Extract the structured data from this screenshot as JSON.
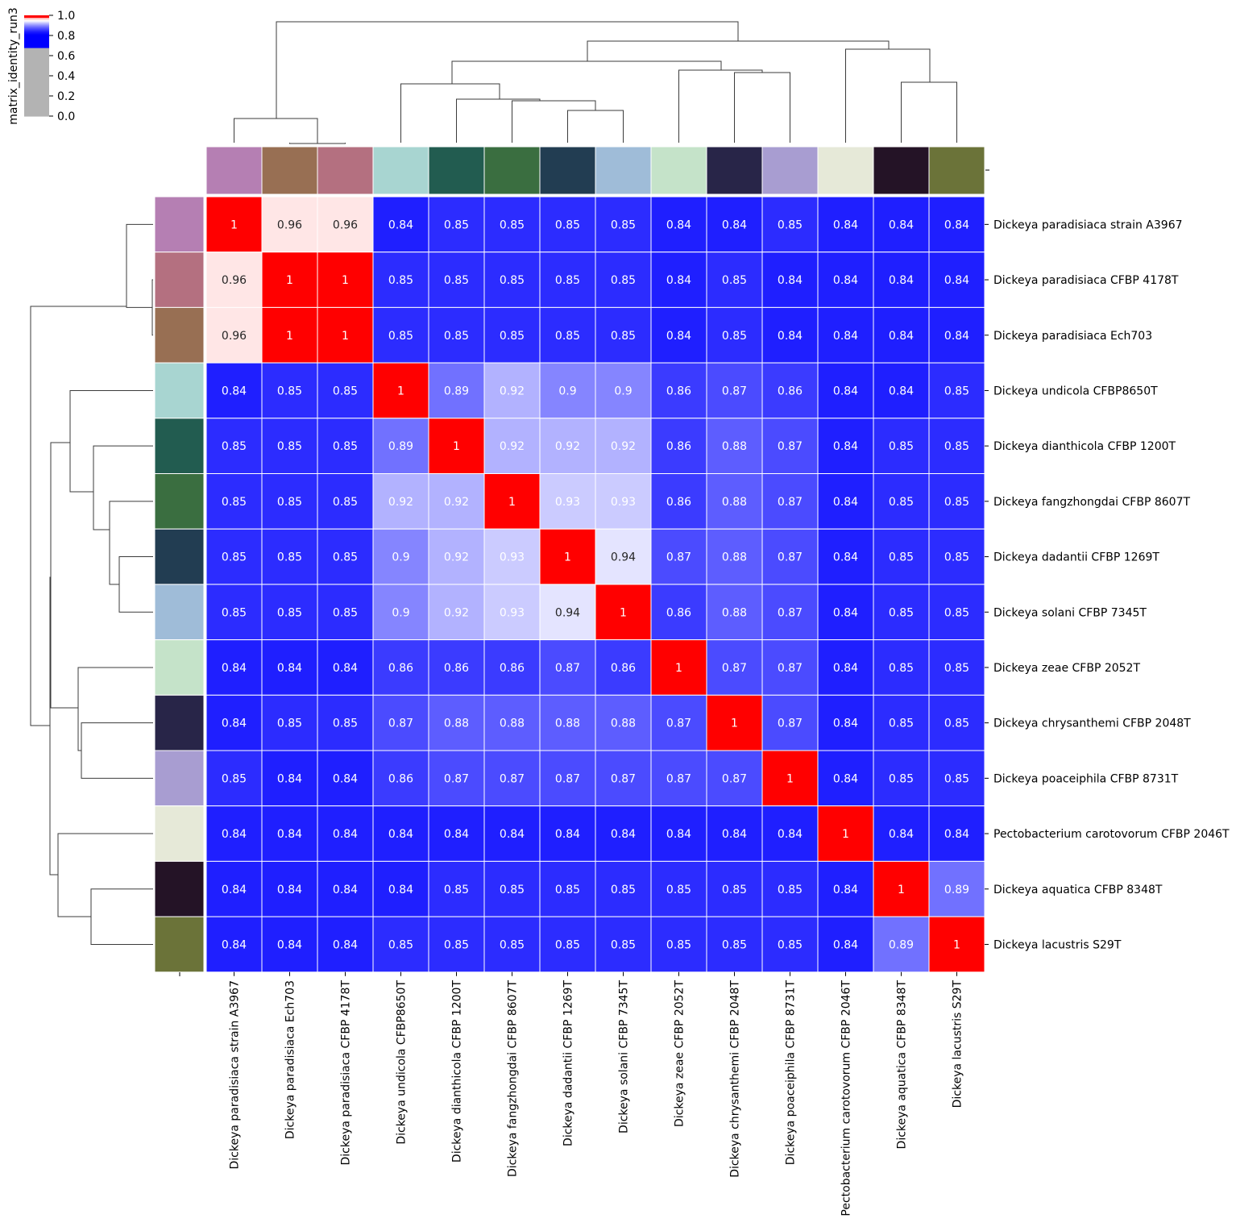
{
  "chart_data": {
    "type": "heatmap",
    "title": "",
    "row_labels": [
      "Dickeya paradisiaca strain A3967",
      "Dickeya paradisiaca CFBP 4178T",
      "Dickeya paradisiaca Ech703",
      "Dickeya undicola CFBP8650T",
      "Dickeya dianthicola CFBP 1200T",
      "Dickeya fangzhongdai CFBP 8607T",
      "Dickeya dadantii CFBP 1269T",
      "Dickeya solani CFBP 7345T",
      "Dickeya zeae CFBP 2052T",
      "Dickeya chrysanthemi CFBP 2048T",
      "Dickeya poaceiphila CFBP 8731T",
      "Pectobacterium carotovorum CFBP 2046T",
      "Dickeya aquatica CFBP 8348T",
      "Dickeya lacustris S29T"
    ],
    "col_labels": [
      "Dickeya paradisiaca strain A3967",
      "Dickeya paradisiaca Ech703",
      "Dickeya paradisiaca CFBP 4178T",
      "Dickeya undicola CFBP8650T",
      "Dickeya dianthicola CFBP 1200T",
      "Dickeya fangzhongdai CFBP 8607T",
      "Dickeya dadantii CFBP 1269T",
      "Dickeya solani CFBP 7345T",
      "Dickeya zeae CFBP 2052T",
      "Dickeya chrysanthemi CFBP 2048T",
      "Dickeya poaceiphila CFBP 8731T",
      "Pectobacterium carotovorum CFBP 2046T",
      "Dickeya aquatica CFBP 8348T",
      "Dickeya lacustris S29T"
    ],
    "values": [
      [
        1,
        0.96,
        0.96,
        0.84,
        0.85,
        0.85,
        0.85,
        0.85,
        0.84,
        0.84,
        0.85,
        0.84,
        0.84,
        0.84
      ],
      [
        0.96,
        1,
        1,
        0.85,
        0.85,
        0.85,
        0.85,
        0.85,
        0.84,
        0.85,
        0.84,
        0.84,
        0.84,
        0.84
      ],
      [
        0.96,
        1,
        1,
        0.85,
        0.85,
        0.85,
        0.85,
        0.85,
        0.84,
        0.85,
        0.84,
        0.84,
        0.84,
        0.84
      ],
      [
        0.84,
        0.85,
        0.85,
        1,
        0.89,
        0.92,
        0.9,
        0.9,
        0.86,
        0.87,
        0.86,
        0.84,
        0.84,
        0.85
      ],
      [
        0.85,
        0.85,
        0.85,
        0.89,
        1,
        0.92,
        0.92,
        0.92,
        0.86,
        0.88,
        0.87,
        0.84,
        0.85,
        0.85
      ],
      [
        0.85,
        0.85,
        0.85,
        0.92,
        0.92,
        1,
        0.93,
        0.93,
        0.86,
        0.88,
        0.87,
        0.84,
        0.85,
        0.85
      ],
      [
        0.85,
        0.85,
        0.85,
        0.9,
        0.92,
        0.93,
        1,
        0.94,
        0.87,
        0.88,
        0.87,
        0.84,
        0.85,
        0.85
      ],
      [
        0.85,
        0.85,
        0.85,
        0.9,
        0.92,
        0.93,
        0.94,
        1,
        0.86,
        0.88,
        0.87,
        0.84,
        0.85,
        0.85
      ],
      [
        0.84,
        0.84,
        0.84,
        0.86,
        0.86,
        0.86,
        0.87,
        0.86,
        1,
        0.87,
        0.87,
        0.84,
        0.85,
        0.85
      ],
      [
        0.84,
        0.85,
        0.85,
        0.87,
        0.88,
        0.88,
        0.88,
        0.88,
        0.87,
        1,
        0.87,
        0.84,
        0.85,
        0.85
      ],
      [
        0.85,
        0.84,
        0.84,
        0.86,
        0.87,
        0.87,
        0.87,
        0.87,
        0.87,
        0.87,
        1,
        0.84,
        0.85,
        0.85
      ],
      [
        0.84,
        0.84,
        0.84,
        0.84,
        0.84,
        0.84,
        0.84,
        0.84,
        0.84,
        0.84,
        0.84,
        1,
        0.84,
        0.84
      ],
      [
        0.84,
        0.84,
        0.84,
        0.84,
        0.85,
        0.85,
        0.85,
        0.85,
        0.85,
        0.85,
        0.85,
        0.84,
        1,
        0.89
      ],
      [
        0.84,
        0.84,
        0.84,
        0.85,
        0.85,
        0.85,
        0.85,
        0.85,
        0.85,
        0.85,
        0.85,
        0.84,
        0.89,
        1
      ]
    ],
    "row_colors": [
      "#b57fb3",
      "#b47080",
      "#986f53",
      "#a8d5d1",
      "#225c50",
      "#3a6e40",
      "#223d52",
      "#9fbcd8",
      "#c5e3c9",
      "#282548",
      "#a89dd1",
      "#e6e9d8",
      "#241326",
      "#6b7339"
    ],
    "col_colors": [
      "#b57fb3",
      "#986f53",
      "#b47080",
      "#a8d5d1",
      "#225c50",
      "#3a6e40",
      "#223d52",
      "#9fbcd8",
      "#c5e3c9",
      "#282548",
      "#a89dd1",
      "#e6e9d8",
      "#241326",
      "#6b7339"
    ],
    "colormap": {
      "label": "matrix_identity_run3",
      "ticks": [
        1.0,
        0.8,
        0.6,
        0.4,
        0.2,
        0.0
      ],
      "tick_labels": [
        "1.0",
        "0.8",
        "0.6",
        "0.4",
        "0.2",
        "0.0"
      ],
      "below_threshold": "#b3b3b3",
      "threshold": 0.68,
      "low": "#0000ff",
      "mid": "#ffffff",
      "high": "#ff0000",
      "low_point": 0.8,
      "mid_point": 0.95,
      "high_point": 0.98
    },
    "cell_text_dark_for": [
      0.94,
      0.96
    ]
  }
}
